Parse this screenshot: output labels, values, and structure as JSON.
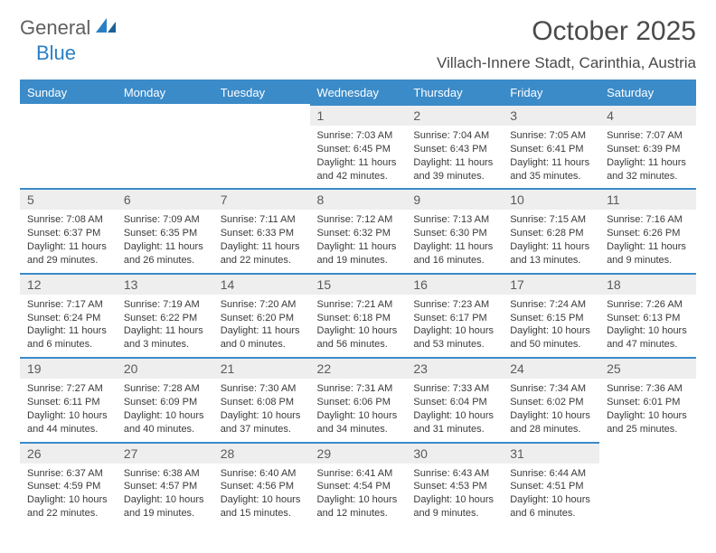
{
  "logo": {
    "word1": "General",
    "word2": "Blue"
  },
  "title": "October 2025",
  "location": "Villach-Innere Stadt, Carinthia, Austria",
  "colors": {
    "header_bg": "#3b8bc9",
    "header_text": "#ffffff",
    "daynum_bg": "#eeeeee",
    "border": "#3b8bc9",
    "text": "#3a3a3a",
    "logo_gray": "#606060",
    "logo_blue": "#2a7fc4"
  },
  "weekdays": [
    "Sunday",
    "Monday",
    "Tuesday",
    "Wednesday",
    "Thursday",
    "Friday",
    "Saturday"
  ],
  "weeks": [
    [
      null,
      null,
      null,
      {
        "n": "1",
        "sr": "7:03 AM",
        "ss": "6:45 PM",
        "d1": "11 hours",
        "d2": "and 42 minutes."
      },
      {
        "n": "2",
        "sr": "7:04 AM",
        "ss": "6:43 PM",
        "d1": "11 hours",
        "d2": "and 39 minutes."
      },
      {
        "n": "3",
        "sr": "7:05 AM",
        "ss": "6:41 PM",
        "d1": "11 hours",
        "d2": "and 35 minutes."
      },
      {
        "n": "4",
        "sr": "7:07 AM",
        "ss": "6:39 PM",
        "d1": "11 hours",
        "d2": "and 32 minutes."
      }
    ],
    [
      {
        "n": "5",
        "sr": "7:08 AM",
        "ss": "6:37 PM",
        "d1": "11 hours",
        "d2": "and 29 minutes."
      },
      {
        "n": "6",
        "sr": "7:09 AM",
        "ss": "6:35 PM",
        "d1": "11 hours",
        "d2": "and 26 minutes."
      },
      {
        "n": "7",
        "sr": "7:11 AM",
        "ss": "6:33 PM",
        "d1": "11 hours",
        "d2": "and 22 minutes."
      },
      {
        "n": "8",
        "sr": "7:12 AM",
        "ss": "6:32 PM",
        "d1": "11 hours",
        "d2": "and 19 minutes."
      },
      {
        "n": "9",
        "sr": "7:13 AM",
        "ss": "6:30 PM",
        "d1": "11 hours",
        "d2": "and 16 minutes."
      },
      {
        "n": "10",
        "sr": "7:15 AM",
        "ss": "6:28 PM",
        "d1": "11 hours",
        "d2": "and 13 minutes."
      },
      {
        "n": "11",
        "sr": "7:16 AM",
        "ss": "6:26 PM",
        "d1": "11 hours",
        "d2": "and 9 minutes."
      }
    ],
    [
      {
        "n": "12",
        "sr": "7:17 AM",
        "ss": "6:24 PM",
        "d1": "11 hours",
        "d2": "and 6 minutes."
      },
      {
        "n": "13",
        "sr": "7:19 AM",
        "ss": "6:22 PM",
        "d1": "11 hours",
        "d2": "and 3 minutes."
      },
      {
        "n": "14",
        "sr": "7:20 AM",
        "ss": "6:20 PM",
        "d1": "11 hours",
        "d2": "and 0 minutes."
      },
      {
        "n": "15",
        "sr": "7:21 AM",
        "ss": "6:18 PM",
        "d1": "10 hours",
        "d2": "and 56 minutes."
      },
      {
        "n": "16",
        "sr": "7:23 AM",
        "ss": "6:17 PM",
        "d1": "10 hours",
        "d2": "and 53 minutes."
      },
      {
        "n": "17",
        "sr": "7:24 AM",
        "ss": "6:15 PM",
        "d1": "10 hours",
        "d2": "and 50 minutes."
      },
      {
        "n": "18",
        "sr": "7:26 AM",
        "ss": "6:13 PM",
        "d1": "10 hours",
        "d2": "and 47 minutes."
      }
    ],
    [
      {
        "n": "19",
        "sr": "7:27 AM",
        "ss": "6:11 PM",
        "d1": "10 hours",
        "d2": "and 44 minutes."
      },
      {
        "n": "20",
        "sr": "7:28 AM",
        "ss": "6:09 PM",
        "d1": "10 hours",
        "d2": "and 40 minutes."
      },
      {
        "n": "21",
        "sr": "7:30 AM",
        "ss": "6:08 PM",
        "d1": "10 hours",
        "d2": "and 37 minutes."
      },
      {
        "n": "22",
        "sr": "7:31 AM",
        "ss": "6:06 PM",
        "d1": "10 hours",
        "d2": "and 34 minutes."
      },
      {
        "n": "23",
        "sr": "7:33 AM",
        "ss": "6:04 PM",
        "d1": "10 hours",
        "d2": "and 31 minutes."
      },
      {
        "n": "24",
        "sr": "7:34 AM",
        "ss": "6:02 PM",
        "d1": "10 hours",
        "d2": "and 28 minutes."
      },
      {
        "n": "25",
        "sr": "7:36 AM",
        "ss": "6:01 PM",
        "d1": "10 hours",
        "d2": "and 25 minutes."
      }
    ],
    [
      {
        "n": "26",
        "sr": "6:37 AM",
        "ss": "4:59 PM",
        "d1": "10 hours",
        "d2": "and 22 minutes."
      },
      {
        "n": "27",
        "sr": "6:38 AM",
        "ss": "4:57 PM",
        "d1": "10 hours",
        "d2": "and 19 minutes."
      },
      {
        "n": "28",
        "sr": "6:40 AM",
        "ss": "4:56 PM",
        "d1": "10 hours",
        "d2": "and 15 minutes."
      },
      {
        "n": "29",
        "sr": "6:41 AM",
        "ss": "4:54 PM",
        "d1": "10 hours",
        "d2": "and 12 minutes."
      },
      {
        "n": "30",
        "sr": "6:43 AM",
        "ss": "4:53 PM",
        "d1": "10 hours",
        "d2": "and 9 minutes."
      },
      {
        "n": "31",
        "sr": "6:44 AM",
        "ss": "4:51 PM",
        "d1": "10 hours",
        "d2": "and 6 minutes."
      },
      null
    ]
  ],
  "labels": {
    "sunrise": "Sunrise:",
    "sunset": "Sunset:",
    "daylight": "Daylight:"
  }
}
